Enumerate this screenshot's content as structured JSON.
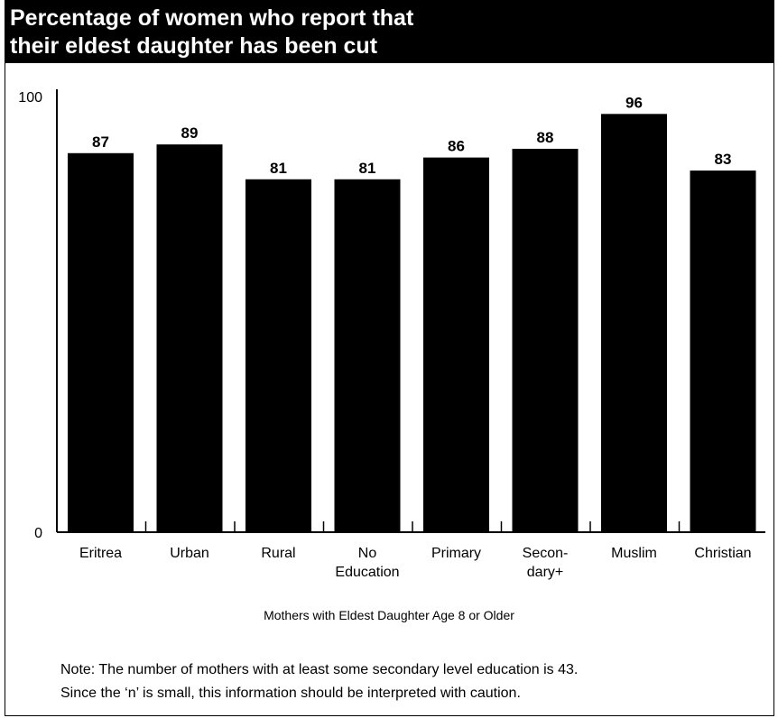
{
  "chart_data": {
    "type": "bar",
    "title": [
      "Percentage of women who report that",
      "their eldest daughter has been cut"
    ],
    "categories": [
      [
        "Eritrea"
      ],
      [
        "Urban"
      ],
      [
        "Rural"
      ],
      [
        "No",
        "Education"
      ],
      [
        "Primary"
      ],
      [
        "Secon-",
        "dary+"
      ],
      [
        "Muslim"
      ],
      [
        "Christian"
      ]
    ],
    "values": [
      87,
      89,
      81,
      81,
      86,
      88,
      96,
      83
    ],
    "ylim": [
      0,
      100
    ],
    "yticks": [
      "0",
      "100"
    ],
    "xlabel": "Mothers with Eldest Daughter Age 8 or Older",
    "ylabel": "",
    "grid": false,
    "bar_color": "#000000"
  },
  "note": [
    "Note: The number of mothers with at least some secondary level education is 43.",
    "Since the ‘n’ is small, this information should be interpreted with caution."
  ]
}
